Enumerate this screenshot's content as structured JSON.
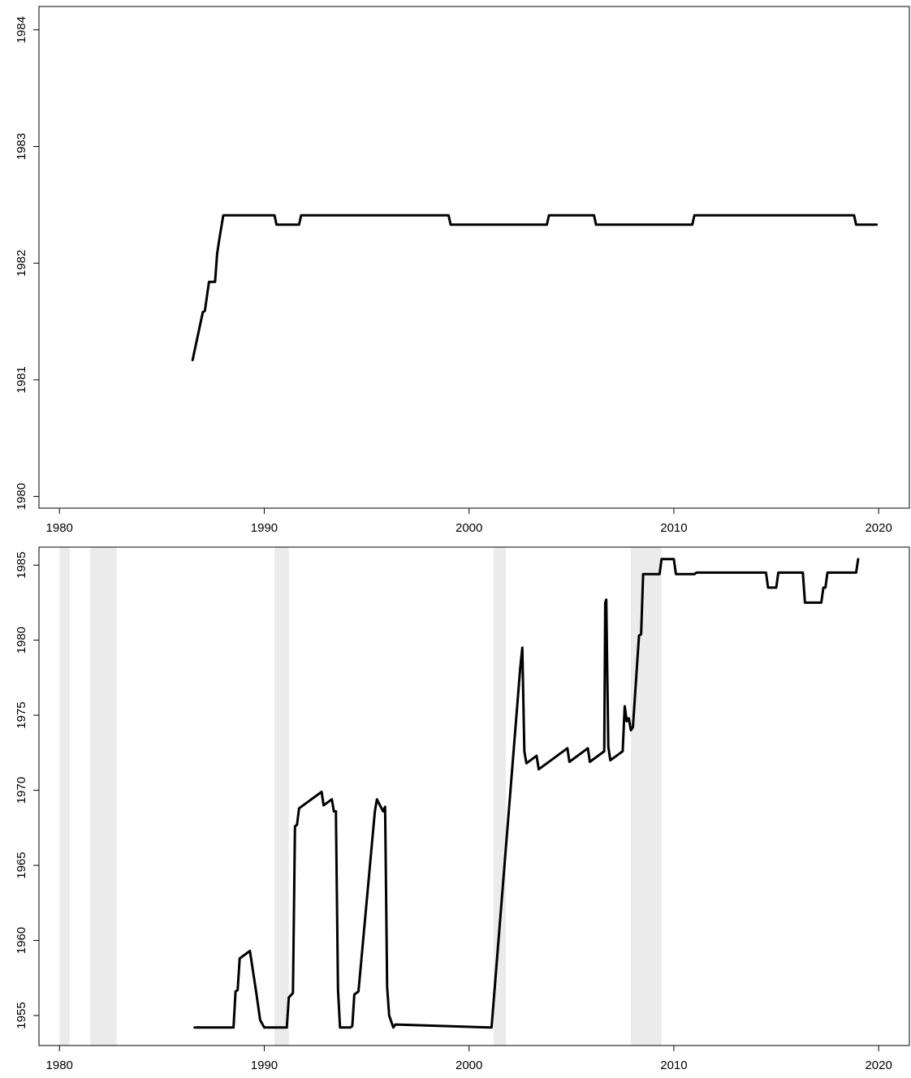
{
  "chart_data": [
    {
      "type": "line",
      "title": "",
      "xlabel": "",
      "ylabel": "",
      "xlim": [
        1979,
        2021.5
      ],
      "ylim": [
        1979.9,
        1984.2
      ],
      "x_ticks": [
        1980,
        1990,
        2000,
        2010,
        2020
      ],
      "x_tick_labels": [
        "1980",
        "1990",
        "2000",
        "2010",
        "2020"
      ],
      "y_ticks": [
        1980,
        1981,
        1982,
        1983,
        1984
      ],
      "y_tick_labels": [
        "1980",
        "1981",
        "1982",
        "1983",
        "1984"
      ],
      "grid": false,
      "shaded_periods": [],
      "series": [
        {
          "color": "#000000",
          "x": [
            1986.5,
            1987.0,
            1987.1,
            1987.3,
            1987.6,
            1987.7,
            1987.8,
            1988.0,
            1990.5,
            1990.6,
            1991.7,
            1991.8,
            1999.0,
            1999.1,
            2003.8,
            2003.9,
            2006.1,
            2006.2,
            2010.9,
            2011.0,
            2018.8,
            2018.9,
            2019.9
          ],
          "y": [
            1981.17,
            1981.58,
            1981.59,
            1981.84,
            1981.84,
            1982.08,
            1982.2,
            1982.41,
            1982.41,
            1982.33,
            1982.33,
            1982.41,
            1982.41,
            1982.33,
            1982.33,
            1982.41,
            1982.41,
            1982.33,
            1982.33,
            1982.41,
            1982.41,
            1982.33,
            1982.33
          ]
        }
      ]
    },
    {
      "type": "line",
      "title": "",
      "xlabel": "",
      "ylabel": "",
      "xlim": [
        1979,
        2021.5
      ],
      "ylim": [
        1953.0,
        1986.2
      ],
      "x_ticks": [
        1980,
        1990,
        2000,
        2010,
        2020
      ],
      "x_tick_labels": [
        "1980",
        "1990",
        "2000",
        "2010",
        "2020"
      ],
      "y_ticks": [
        1955,
        1960,
        1965,
        1970,
        1975,
        1980,
        1985
      ],
      "y_tick_labels": [
        "1955",
        "1960",
        "1965",
        "1970",
        "1975",
        "1980",
        "1985"
      ],
      "grid": false,
      "shaded_periods": [
        [
          1980.0,
          1980.5
        ],
        [
          1981.5,
          1982.8
        ],
        [
          1990.5,
          1991.2
        ],
        [
          2001.2,
          2001.8
        ],
        [
          2007.9,
          2009.4
        ]
      ],
      "series": [
        {
          "color": "#000000",
          "x": [
            1986.6,
            1988.5,
            1988.6,
            1988.7,
            1988.8,
            1989.3,
            1989.6,
            1989.8,
            1990.0,
            1991.1,
            1991.2,
            1991.4,
            1991.5,
            1991.6,
            1991.7,
            1992.8,
            1992.9,
            1993.3,
            1993.4,
            1993.5,
            1993.6,
            1993.7,
            1994.2,
            1994.3,
            1994.4,
            1994.6,
            1995.4,
            1995.5,
            1995.8,
            1995.9,
            1996.0,
            1996.1,
            1996.3,
            1996.4,
            2001.0,
            2001.1,
            2002.5,
            2002.6,
            2002.7,
            2002.8,
            2003.3,
            2003.4,
            2004.8,
            2004.9,
            2005.8,
            2005.9,
            2006.6,
            2006.65,
            2006.7,
            2006.8,
            2006.9,
            2007.5,
            2007.6,
            2007.7,
            2007.8,
            2007.9,
            2008.0,
            2008.3,
            2008.4,
            2008.5,
            2009.3,
            2009.4,
            2010.0,
            2010.1,
            2011.0,
            2011.1,
            2014.5,
            2014.6,
            2015.0,
            2015.1,
            2016.3,
            2016.4,
            2017.2,
            2017.3,
            2017.4,
            2017.5,
            2018.9,
            2019.0
          ],
          "y": [
            1954.2,
            1954.2,
            1956.6,
            1956.7,
            1958.8,
            1959.3,
            1956.6,
            1954.7,
            1954.2,
            1954.2,
            1956.2,
            1956.5,
            1967.6,
            1967.7,
            1968.8,
            1969.9,
            1969.0,
            1969.4,
            1968.6,
            1968.6,
            1956.7,
            1954.2,
            1954.2,
            1954.3,
            1956.4,
            1956.6,
            1968.6,
            1969.4,
            1968.6,
            1968.9,
            1956.9,
            1955.0,
            1954.2,
            1954.4,
            1954.2,
            1954.2,
            1978.2,
            1979.5,
            1972.6,
            1971.8,
            1972.3,
            1971.4,
            1972.8,
            1971.9,
            1972.8,
            1971.9,
            1972.6,
            1982.5,
            1982.7,
            1972.9,
            1972.0,
            1972.6,
            1975.6,
            1974.6,
            1974.8,
            1974.0,
            1974.2,
            1980.3,
            1980.4,
            1984.4,
            1984.4,
            1985.4,
            1985.4,
            1984.4,
            1984.4,
            1984.5,
            1984.5,
            1983.5,
            1983.5,
            1984.5,
            1984.5,
            1982.5,
            1982.5,
            1983.5,
            1983.5,
            1984.5,
            1984.5,
            1985.4
          ]
        }
      ]
    }
  ]
}
